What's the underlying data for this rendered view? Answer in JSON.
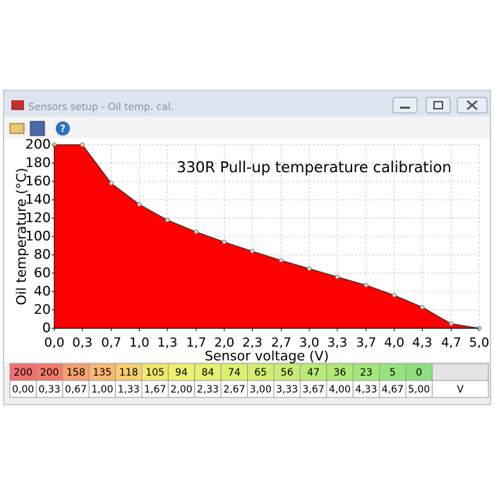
{
  "window": {
    "title": "Sensors setup - Oil temp. cal."
  },
  "chart_data": {
    "type": "area",
    "title": "330R Pull-up temperature calibration",
    "x_label": "Sensor voltage (V)",
    "y_label": "Oil temperature (°C)",
    "x": [
      0,
      0.33,
      0.67,
      1,
      1.33,
      1.67,
      2,
      2.33,
      2.67,
      3,
      3.33,
      3.67,
      4,
      4.33,
      4.67,
      5
    ],
    "values": [
      200,
      200,
      158,
      135,
      118,
      105,
      94,
      84,
      74,
      65,
      56,
      47,
      36,
      23,
      5,
      0
    ],
    "color": "#ff0000",
    "xlim": [
      0,
      5
    ],
    "xticks": [
      {
        "value": 0,
        "label": "0,0"
      },
      {
        "value": 0.33,
        "label": "0,3"
      },
      {
        "value": 0.67,
        "label": "0,7"
      },
      {
        "value": 1,
        "label": "1,0"
      },
      {
        "value": 1.33,
        "label": "1,3"
      },
      {
        "value": 1.67,
        "label": "1,7"
      },
      {
        "value": 2,
        "label": "2,0"
      },
      {
        "value": 2.33,
        "label": "2,3"
      },
      {
        "value": 2.67,
        "label": "2,7"
      },
      {
        "value": 3,
        "label": "3,0"
      },
      {
        "value": 3.33,
        "label": "3,3"
      },
      {
        "value": 3.67,
        "label": "3,7"
      },
      {
        "value": 4,
        "label": "4,0"
      },
      {
        "value": 4.33,
        "label": "4,3"
      },
      {
        "value": 4.67,
        "label": "4,7"
      },
      {
        "value": 5,
        "label": "5,0"
      }
    ],
    "ylim": [
      0,
      200
    ],
    "yticks": [
      0,
      20,
      40,
      60,
      80,
      100,
      120,
      140,
      160,
      180,
      200
    ],
    "grid": true
  },
  "table": {
    "voltage_row": [
      "0,00",
      "0,33",
      "0,67",
      "1,00",
      "1,33",
      "1,67",
      "2,00",
      "2,33",
      "2,67",
      "3,00",
      "3,33",
      "3,67",
      "4,00",
      "4,33",
      "4,67",
      "5,00"
    ],
    "unit": "V",
    "cell_colors": [
      "#f07070",
      "#f27a6a",
      "#f5a070",
      "#f7b872",
      "#f5d070",
      "#f2e870",
      "#eef070",
      "#e4f070",
      "#dcf070",
      "#d2ee72",
      "#c8ec74",
      "#bcea76",
      "#b0e878",
      "#a4e67a",
      "#98e47c",
      "#8ee07e"
    ]
  }
}
